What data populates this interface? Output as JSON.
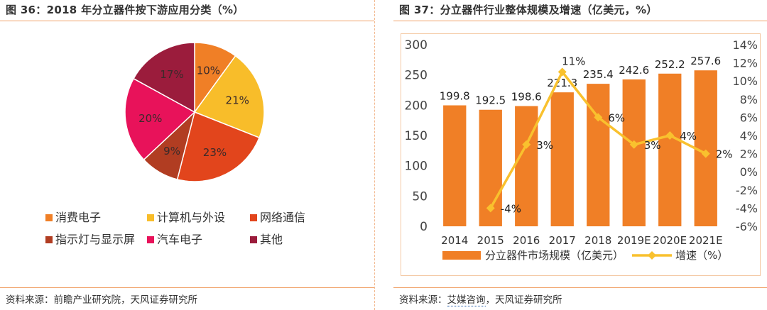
{
  "left": {
    "title": "图 36：2018 年分立器件按下游应用分类（%）",
    "source": "资料来源：前瞻产业研究院，天风证券研究所",
    "chart_data": {
      "type": "pie",
      "title": "",
      "slices": [
        {
          "name": "消费电子",
          "value": 10,
          "label": "10%",
          "color": "#f07f26"
        },
        {
          "name": "计算机与外设",
          "value": 21,
          "label": "21%",
          "color": "#f8bd2a"
        },
        {
          "name": "网络通信",
          "value": 23,
          "label": "23%",
          "color": "#e2451c"
        },
        {
          "name": "指示灯与显示屏",
          "value": 9,
          "label": "9%",
          "color": "#b13d22"
        },
        {
          "name": "汽车电子",
          "value": 20,
          "label": "20%",
          "color": "#e8125a"
        },
        {
          "name": "其他",
          "value": 17,
          "label": "17%",
          "color": "#9b1c3c"
        }
      ],
      "legend_position": "bottom"
    }
  },
  "right": {
    "title": "图 37：分立器件行业整体规模及增速（亿美元，%）",
    "source_prefix": "资料来源：",
    "source_link": "艾媒咨询",
    "source_suffix": "，天风证券研究所",
    "chart_data": {
      "type": "bar",
      "categories": [
        "2014",
        "2015",
        "2016",
        "2017",
        "2018",
        "2019E",
        "2020E",
        "2021E"
      ],
      "series": [
        {
          "name": "分立器件市场规模（亿美元）",
          "kind": "bar",
          "axis": "left",
          "values": [
            199.8,
            192.5,
            198.6,
            221.3,
            235.4,
            242.6,
            252.2,
            257.6
          ],
          "labels": [
            "199.8",
            "192.5",
            "198.6",
            "221.3",
            "235.4",
            "242.6",
            "252.2",
            "257.6"
          ],
          "color": "#f07f26"
        },
        {
          "name": "增速（%）",
          "kind": "line",
          "axis": "right",
          "values": [
            null,
            -4,
            3,
            11,
            6,
            3,
            4,
            2
          ],
          "labels": [
            "",
            "-4%",
            "3%",
            "11%",
            "6%",
            "3%",
            "4%",
            "2%"
          ],
          "color": "#f9c12e"
        }
      ],
      "ylim_left": [
        0,
        300
      ],
      "yticks_left": [
        0,
        50,
        100,
        150,
        200,
        250,
        300
      ],
      "ylim_right": [
        -6,
        14
      ],
      "yticks_right": [
        "-6%",
        "-4%",
        "-2%",
        "0%",
        "2%",
        "4%",
        "6%",
        "8%",
        "10%",
        "12%",
        "14%"
      ],
      "grid": false,
      "legend_position": "bottom"
    }
  }
}
